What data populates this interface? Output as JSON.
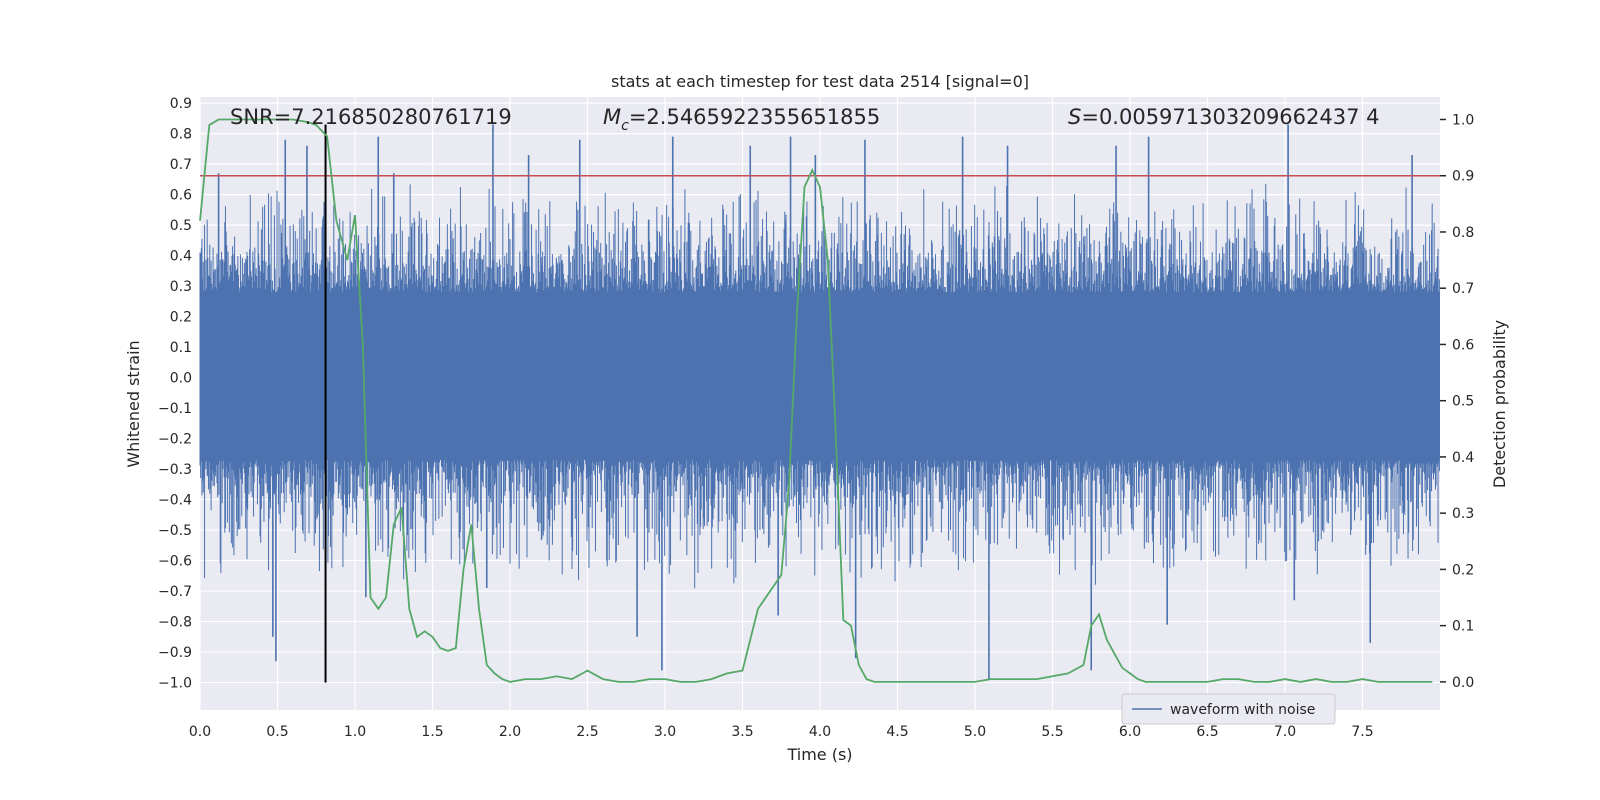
{
  "colors": {
    "plot_background": "#eaeaf2",
    "grid": "#ffffff",
    "waveform": "#4c72b0",
    "probability": "#55a868",
    "threshold": "#c44e52",
    "marker": "#000000"
  },
  "chart_data": {
    "type": "line",
    "title": "stats at each timestep for test data 2514 [signal=0]",
    "xlabel": "Time (s)",
    "ylabel": "Whitened strain",
    "ylabel_right": "Detection probability",
    "xlim": [
      0.0,
      8.0
    ],
    "ylim": [
      -1.09,
      0.92
    ],
    "ylim_right": [
      -0.05,
      1.04
    ],
    "x_ticks": [
      "0.0",
      "0.5",
      "1.0",
      "1.5",
      "2.0",
      "2.5",
      "3.0",
      "3.5",
      "4.0",
      "4.5",
      "5.0",
      "5.5",
      "6.0",
      "6.5",
      "7.0",
      "7.5"
    ],
    "y_ticks": [
      "0.9",
      "0.8",
      "0.7",
      "0.6",
      "0.5",
      "0.4",
      "0.3",
      "0.2",
      "0.1",
      "0.0",
      "−0.1",
      "−0.2",
      "−0.3",
      "−0.4",
      "−0.5",
      "−0.6",
      "−0.7",
      "−0.8",
      "−0.9",
      "−1.0"
    ],
    "y_right_ticks": [
      "1.0",
      "0.9",
      "0.8",
      "0.7",
      "0.6",
      "0.5",
      "0.4",
      "0.3",
      "0.2",
      "0.1",
      "0.0"
    ],
    "annotations": {
      "snr": "SNR=7.216850280761719",
      "mc_symbol": "M",
      "mc_sub": "c",
      "mc_value": "=2.5465922355651855",
      "s_symbol": "S",
      "s_value": "=0.005971303209662437 4"
    },
    "legend": {
      "label": "waveform with noise",
      "location": "lower center-right"
    },
    "threshold_probability": 0.9,
    "marker_time": 0.81,
    "marker_range": [
      -1.0,
      0.83
    ],
    "waveform": {
      "name": "waveform with noise",
      "duration_s": 8.0,
      "core_band": [
        -0.27,
        0.28
      ],
      "typical_peak_range": [
        0.3,
        0.6
      ],
      "spikes": [
        {
          "t": 0.47,
          "v": -0.85
        },
        {
          "t": 0.49,
          "v": -0.93
        },
        {
          "t": 0.55,
          "v": 0.78
        },
        {
          "t": 0.69,
          "v": 0.76
        },
        {
          "t": 0.12,
          "v": 0.67
        },
        {
          "t": 1.07,
          "v": -0.72
        },
        {
          "t": 1.15,
          "v": 0.79
        },
        {
          "t": 1.25,
          "v": 0.67
        },
        {
          "t": 1.89,
          "v": 0.83
        },
        {
          "t": 1.85,
          "v": -0.69
        },
        {
          "t": 2.12,
          "v": 0.73
        },
        {
          "t": 2.45,
          "v": 0.78
        },
        {
          "t": 2.82,
          "v": -0.85
        },
        {
          "t": 2.98,
          "v": -0.96
        },
        {
          "t": 3.05,
          "v": 0.79
        },
        {
          "t": 3.55,
          "v": 0.76
        },
        {
          "t": 3.73,
          "v": -0.78
        },
        {
          "t": 3.97,
          "v": 0.73
        },
        {
          "t": 3.81,
          "v": 0.79
        },
        {
          "t": 4.23,
          "v": -0.92
        },
        {
          "t": 4.29,
          "v": 0.78
        },
        {
          "t": 5.09,
          "v": -0.99
        },
        {
          "t": 5.21,
          "v": 0.76
        },
        {
          "t": 5.75,
          "v": -0.96
        },
        {
          "t": 5.91,
          "v": 0.76
        },
        {
          "t": 6.24,
          "v": -0.81
        },
        {
          "t": 7.02,
          "v": 0.83
        },
        {
          "t": 7.06,
          "v": -0.73
        },
        {
          "t": 7.55,
          "v": -0.87
        },
        {
          "t": 7.82,
          "v": 0.73
        },
        {
          "t": 6.12,
          "v": 0.79
        },
        {
          "t": 4.92,
          "v": 0.79
        }
      ]
    },
    "probability": {
      "name": "Detection probability",
      "x": [
        0.0,
        0.06,
        0.12,
        0.2,
        0.3,
        0.4,
        0.5,
        0.6,
        0.7,
        0.75,
        0.82,
        0.88,
        0.95,
        1.0,
        1.05,
        1.1,
        1.15,
        1.2,
        1.25,
        1.3,
        1.35,
        1.4,
        1.45,
        1.5,
        1.55,
        1.6,
        1.65,
        1.7,
        1.75,
        1.8,
        1.85,
        1.9,
        1.95,
        2.0,
        2.1,
        2.2,
        2.3,
        2.4,
        2.5,
        2.6,
        2.7,
        2.8,
        2.9,
        3.0,
        3.1,
        3.2,
        3.3,
        3.4,
        3.5,
        3.6,
        3.7,
        3.75,
        3.8,
        3.85,
        3.9,
        3.95,
        4.0,
        4.05,
        4.1,
        4.15,
        4.2,
        4.25,
        4.3,
        4.35,
        4.4,
        4.5,
        4.6,
        4.7,
        4.8,
        4.9,
        5.0,
        5.1,
        5.2,
        5.3,
        5.4,
        5.5,
        5.6,
        5.7,
        5.75,
        5.8,
        5.85,
        5.9,
        5.95,
        6.0,
        6.05,
        6.1,
        6.15,
        6.2,
        6.3,
        6.4,
        6.5,
        6.6,
        6.7,
        6.8,
        6.9,
        7.0,
        7.1,
        7.2,
        7.3,
        7.4,
        7.5,
        7.6,
        7.7,
        7.8,
        7.9,
        7.95
      ],
      "y": [
        0.82,
        0.99,
        1.0,
        1.0,
        1.0,
        1.0,
        1.0,
        1.0,
        0.995,
        0.99,
        0.97,
        0.82,
        0.75,
        0.83,
        0.6,
        0.15,
        0.13,
        0.15,
        0.28,
        0.31,
        0.13,
        0.08,
        0.09,
        0.08,
        0.06,
        0.055,
        0.06,
        0.2,
        0.28,
        0.13,
        0.03,
        0.015,
        0.005,
        0.0,
        0.005,
        0.005,
        0.01,
        0.005,
        0.02,
        0.005,
        0.0,
        0.0,
        0.005,
        0.005,
        0.0,
        0.0,
        0.005,
        0.015,
        0.02,
        0.13,
        0.17,
        0.19,
        0.35,
        0.65,
        0.88,
        0.91,
        0.88,
        0.75,
        0.45,
        0.11,
        0.1,
        0.03,
        0.005,
        0.0,
        0.0,
        0.0,
        0.0,
        0.0,
        0.0,
        0.0,
        0.0,
        0.005,
        0.005,
        0.005,
        0.005,
        0.01,
        0.015,
        0.03,
        0.1,
        0.12,
        0.075,
        0.05,
        0.025,
        0.015,
        0.005,
        0.0,
        0.0,
        0.0,
        0.0,
        0.0,
        0.0,
        0.005,
        0.005,
        0.0,
        0.0,
        0.005,
        0.0,
        0.005,
        0.0,
        0.0,
        0.005,
        0.0,
        0.0,
        0.0,
        0.0,
        0.0
      ]
    }
  }
}
